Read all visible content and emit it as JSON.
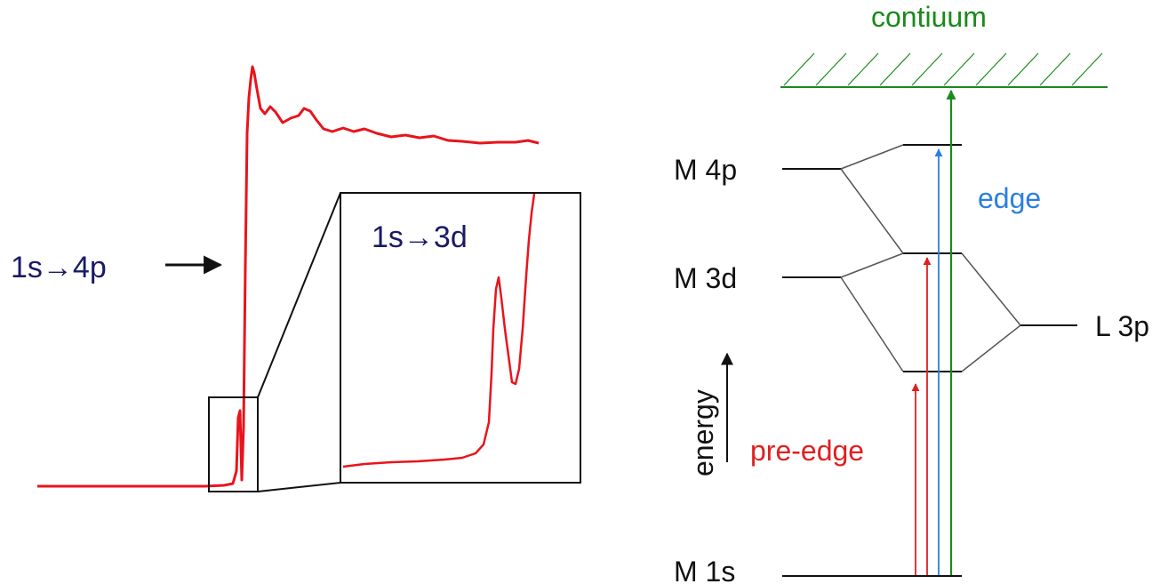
{
  "spectrum": {
    "edge_label": "1s→4p",
    "preedge_label": "1s→3d"
  },
  "mo_diagram": {
    "continuum_label": "contiuum",
    "edge_label": "edge",
    "preedge_label": "pre-edge",
    "energy_label": "energy",
    "levels": {
      "m4p": "M 4p",
      "m3d": "M 3d",
      "m1s": "M 1s",
      "l3p": "L 3p"
    }
  },
  "colors": {
    "spectrum": "#e8141c",
    "continuum": "#1a8a1a",
    "edge_arrow": "#2a7fe0",
    "preedge_arrow": "#e02020",
    "label_dark": "#1a1a66"
  }
}
